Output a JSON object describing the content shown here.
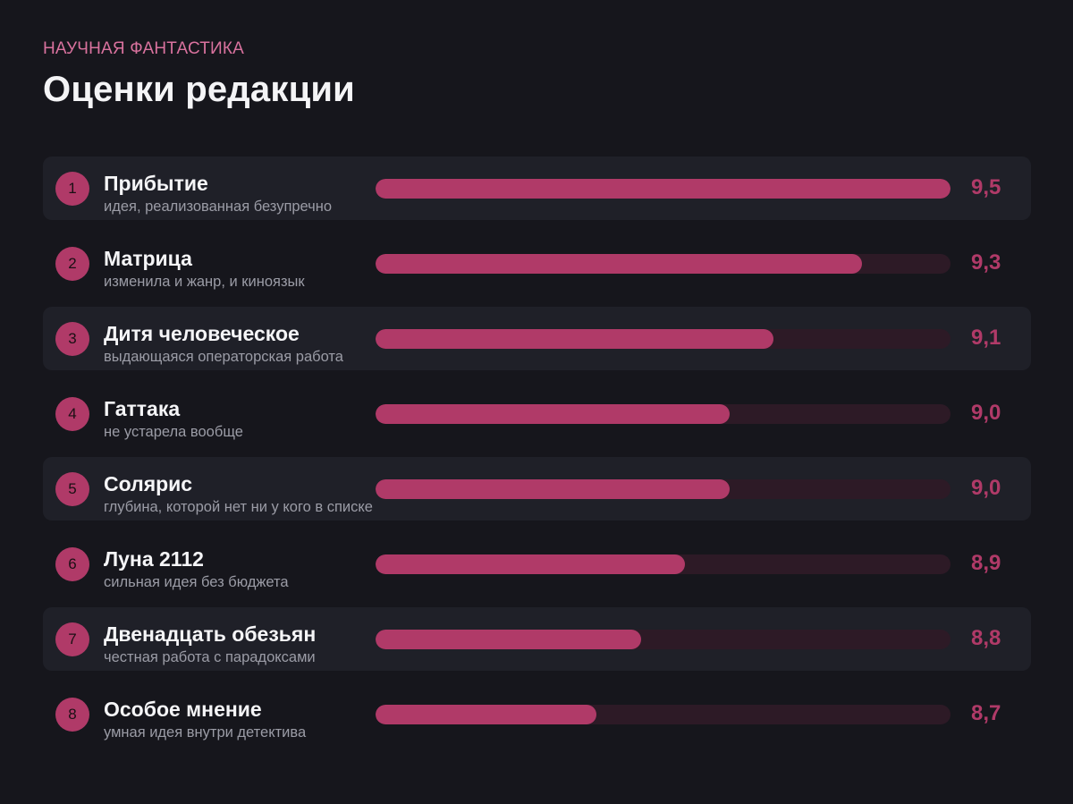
{
  "header": {
    "kicker": "НАУЧНАЯ ФАНТАСТИКА",
    "title": "Оценки редакции"
  },
  "colors": {
    "background": "#16161c",
    "row_shade": "#1f2028",
    "accent": "#b03a68",
    "track": "#2d1a26",
    "kicker": "#d9729e",
    "note": "#9b9ca6"
  },
  "chart_data": {
    "type": "bar",
    "orientation": "horizontal",
    "value_range": [
      0,
      9.5
    ],
    "items": [
      {
        "rank": "1",
        "name": "Прибытие",
        "note": "идея, реализованная безупречно",
        "score": 9.5,
        "score_label": "9,5"
      },
      {
        "rank": "2",
        "name": "Матрица",
        "note": "изменила и жанр, и киноязык",
        "score": 9.3,
        "score_label": "9,3"
      },
      {
        "rank": "3",
        "name": "Дитя человеческое",
        "note": "выдающаяся операторская работа",
        "score": 9.1,
        "score_label": "9,1"
      },
      {
        "rank": "4",
        "name": "Гаттака",
        "note": "не устарела вообще",
        "score": 9.0,
        "score_label": "9,0"
      },
      {
        "rank": "5",
        "name": "Солярис",
        "note": "глубина, которой нет ни у кого в списке",
        "score": 9.0,
        "score_label": "9,0"
      },
      {
        "rank": "6",
        "name": "Луна 2112",
        "note": "сильная идея без бюджета",
        "score": 8.9,
        "score_label": "8,9"
      },
      {
        "rank": "7",
        "name": "Двенадцать обезьян",
        "note": "честная работа с парадоксами",
        "score": 8.8,
        "score_label": "8,8"
      },
      {
        "rank": "8",
        "name": "Особое мнение",
        "note": "умная идея внутри детектива",
        "score": 8.7,
        "score_label": "8,7"
      }
    ]
  }
}
